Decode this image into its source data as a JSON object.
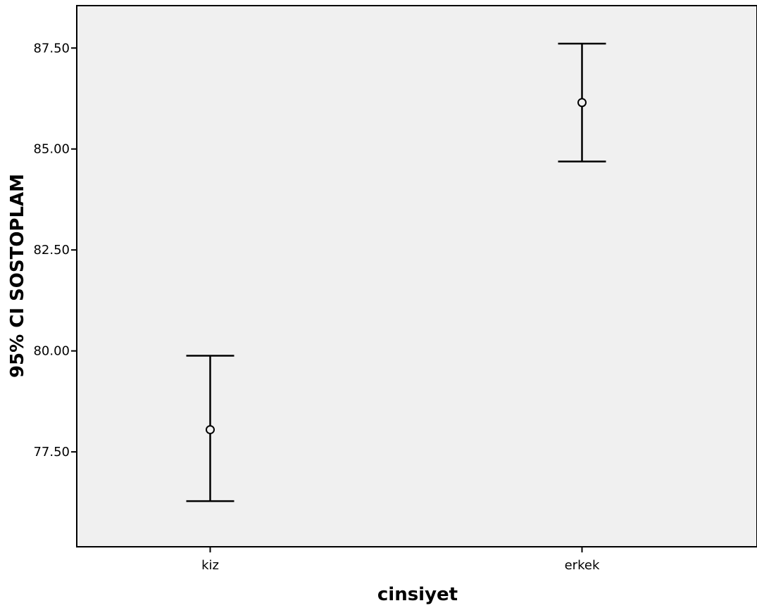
{
  "chart_data": {
    "type": "errorbar",
    "title": "",
    "xlabel": "cinsiyet",
    "ylabel": "95% CI SOSTOPLAM",
    "categories": [
      "kiz",
      "erkek"
    ],
    "means": [
      78.05,
      86.15
    ],
    "ci_lower": [
      76.28,
      84.69
    ],
    "ci_upper": [
      79.88,
      87.61
    ],
    "yticks": [
      "77.50",
      "80.00",
      "82.50",
      "85.00",
      "87.50"
    ],
    "ylim": [
      75.15,
      88.55
    ],
    "grid": false,
    "legend": "none",
    "colors": {
      "plot_background": "#f0f0f0",
      "line": "#000000"
    }
  }
}
